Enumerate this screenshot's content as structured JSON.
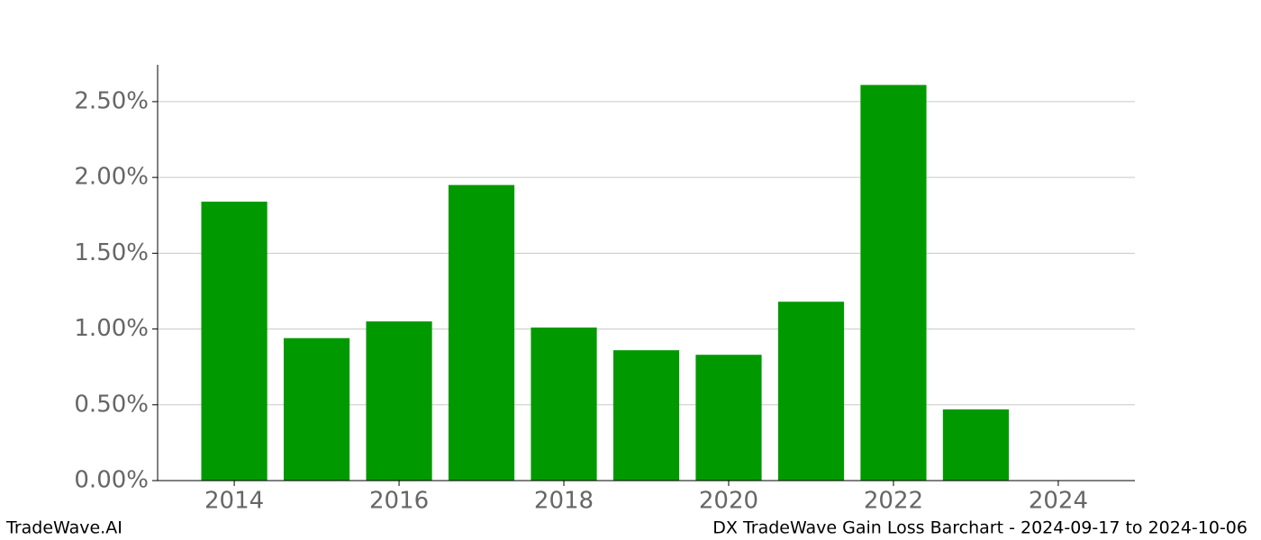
{
  "chart_data": {
    "type": "bar",
    "x": [
      2014,
      2015,
      2016,
      2017,
      2018,
      2019,
      2020,
      2021,
      2022,
      2023
    ],
    "values": [
      1.84,
      0.94,
      1.05,
      1.95,
      1.01,
      0.86,
      0.83,
      1.18,
      2.61,
      0.47
    ],
    "color": "#009900",
    "xlim": [
      2013.07,
      2024.93
    ],
    "xticks": [
      2014,
      2016,
      2018,
      2020,
      2022,
      2024
    ],
    "ylim": [
      0,
      2.743
    ],
    "yticks": [
      {
        "value": 0,
        "label": "0.00%"
      },
      {
        "value": 0.5,
        "label": "0.50%"
      },
      {
        "value": 1,
        "label": "1.00%"
      },
      {
        "value": 1.5,
        "label": "1.50%"
      },
      {
        "value": 2,
        "label": "2.00%"
      },
      {
        "value": 2.5,
        "label": "2.50%"
      }
    ],
    "grid": true
  },
  "footer": {
    "left": "TradeWave.AI",
    "right": "DX TradeWave Gain Loss Barchart - 2024-09-17 to 2024-10-06"
  }
}
